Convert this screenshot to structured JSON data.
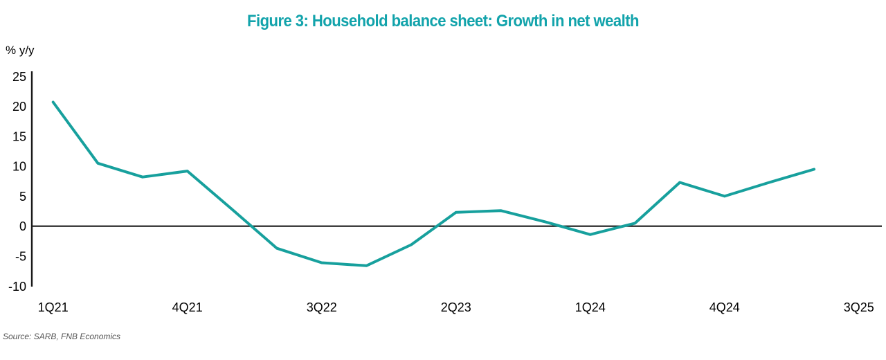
{
  "title": {
    "text": "Figure 3: Household balance sheet: Growth in net wealth"
  },
  "y_axis": {
    "unit_label": "% y/y",
    "ticks": [
      25,
      20,
      15,
      10,
      5,
      0,
      -5,
      -10
    ],
    "min": -10,
    "max": 25
  },
  "x_axis": {
    "tick_labels": [
      "1Q21",
      "4Q21",
      "3Q22",
      "2Q23",
      "1Q24",
      "4Q24",
      "3Q25"
    ],
    "quarters_between_ticks": 3
  },
  "source": {
    "text": "Source: SARB, FNB Economics"
  },
  "colors": {
    "title_teal": "#12A3AB",
    "line_teal": "#17A09D",
    "axis_black": "#1A1A1A",
    "source_gray": "#555555"
  },
  "chart_data": {
    "type": "line",
    "title": "Figure 3: Household balance sheet: Growth in net wealth",
    "xlabel": "",
    "ylabel": "% y/y",
    "ylim": [
      -10,
      25
    ],
    "grid": false,
    "legend": "none",
    "categories": [
      "1Q21",
      "2Q21",
      "3Q21",
      "4Q21",
      "1Q22",
      "2Q22",
      "3Q22",
      "4Q22",
      "1Q23",
      "2Q23",
      "3Q23",
      "4Q23",
      "1Q24",
      "2Q24",
      "3Q24",
      "4Q24",
      "1Q25",
      "2Q25"
    ],
    "series": [
      {
        "name": "Growth in net wealth (% y/y)",
        "values": [
          20.7,
          10.5,
          8.2,
          9.2,
          2.8,
          -3.7,
          -6.1,
          -6.6,
          -3.1,
          2.3,
          2.6,
          0.7,
          -1.4,
          0.5,
          7.3,
          5.0,
          7.3,
          9.5
        ]
      }
    ],
    "x_tick_labels_shown": [
      "1Q21",
      "4Q21",
      "3Q22",
      "2Q23",
      "1Q24",
      "4Q24",
      "3Q25"
    ]
  }
}
